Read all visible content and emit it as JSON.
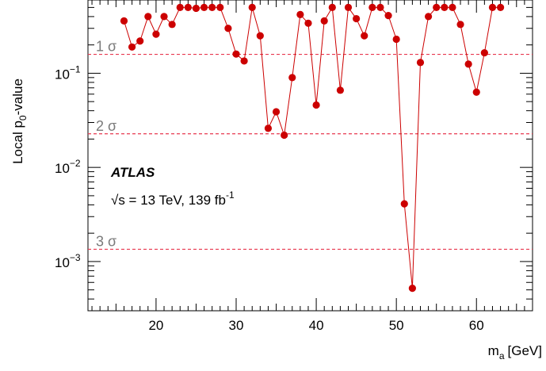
{
  "chart_data": {
    "type": "line",
    "xlabel": "m",
    "xlabel_sub": "a",
    "xlabel_unit": "[GeV]",
    "ylabel": "Local p",
    "ylabel_sub": "0",
    "ylabel_suffix": "-value",
    "xlim": [
      11.5,
      67
    ],
    "ylim": [
      0.0003,
      0.6
    ],
    "yscale": "log",
    "xticks": [
      20,
      30,
      40,
      50,
      60
    ],
    "yticks": [
      {
        "value": 0.1,
        "base": "10",
        "exp": "−1"
      },
      {
        "value": 0.01,
        "base": "10",
        "exp": "−2"
      },
      {
        "value": 0.001,
        "base": "10",
        "exp": "−3"
      }
    ],
    "grid": false,
    "series": [
      {
        "color": "#cc0000",
        "marker": "circle",
        "x": [
          16,
          17,
          18,
          19,
          20,
          21,
          22,
          23,
          24,
          25,
          26,
          27,
          28,
          29,
          30,
          31,
          32,
          33,
          34,
          35,
          36,
          37,
          38,
          39,
          40,
          41,
          42,
          43,
          44,
          45,
          46,
          47,
          48,
          49,
          50,
          51,
          52,
          53,
          54,
          55,
          56,
          57,
          58,
          59,
          60,
          61,
          62,
          63
        ],
        "y": [
          0.36,
          0.19,
          0.22,
          0.4,
          0.26,
          0.4,
          0.33,
          0.5,
          0.5,
          0.49,
          0.5,
          0.5,
          0.5,
          0.3,
          0.16,
          0.135,
          0.5,
          0.25,
          0.026,
          0.039,
          0.022,
          0.09,
          0.42,
          0.34,
          0.046,
          0.36,
          0.5,
          0.066,
          0.5,
          0.38,
          0.25,
          0.5,
          0.5,
          0.41,
          0.23,
          0.0041,
          0.00052,
          0.13,
          0.4,
          0.5,
          0.5,
          0.5,
          0.33,
          0.125,
          0.063,
          0.165,
          0.5,
          0.5
        ]
      }
    ],
    "reference_lines": [
      {
        "label": "1 σ",
        "value": 0.1587
      },
      {
        "label": "2 σ",
        "value": 0.02275
      },
      {
        "label": "3 σ",
        "value": 0.00135
      }
    ],
    "reference_line_color": "#e8384f",
    "annotations": {
      "experiment": "ATLAS",
      "energy_prefix": "√s = 13 TeV, 139 fb",
      "energy_exp": "-1"
    }
  }
}
